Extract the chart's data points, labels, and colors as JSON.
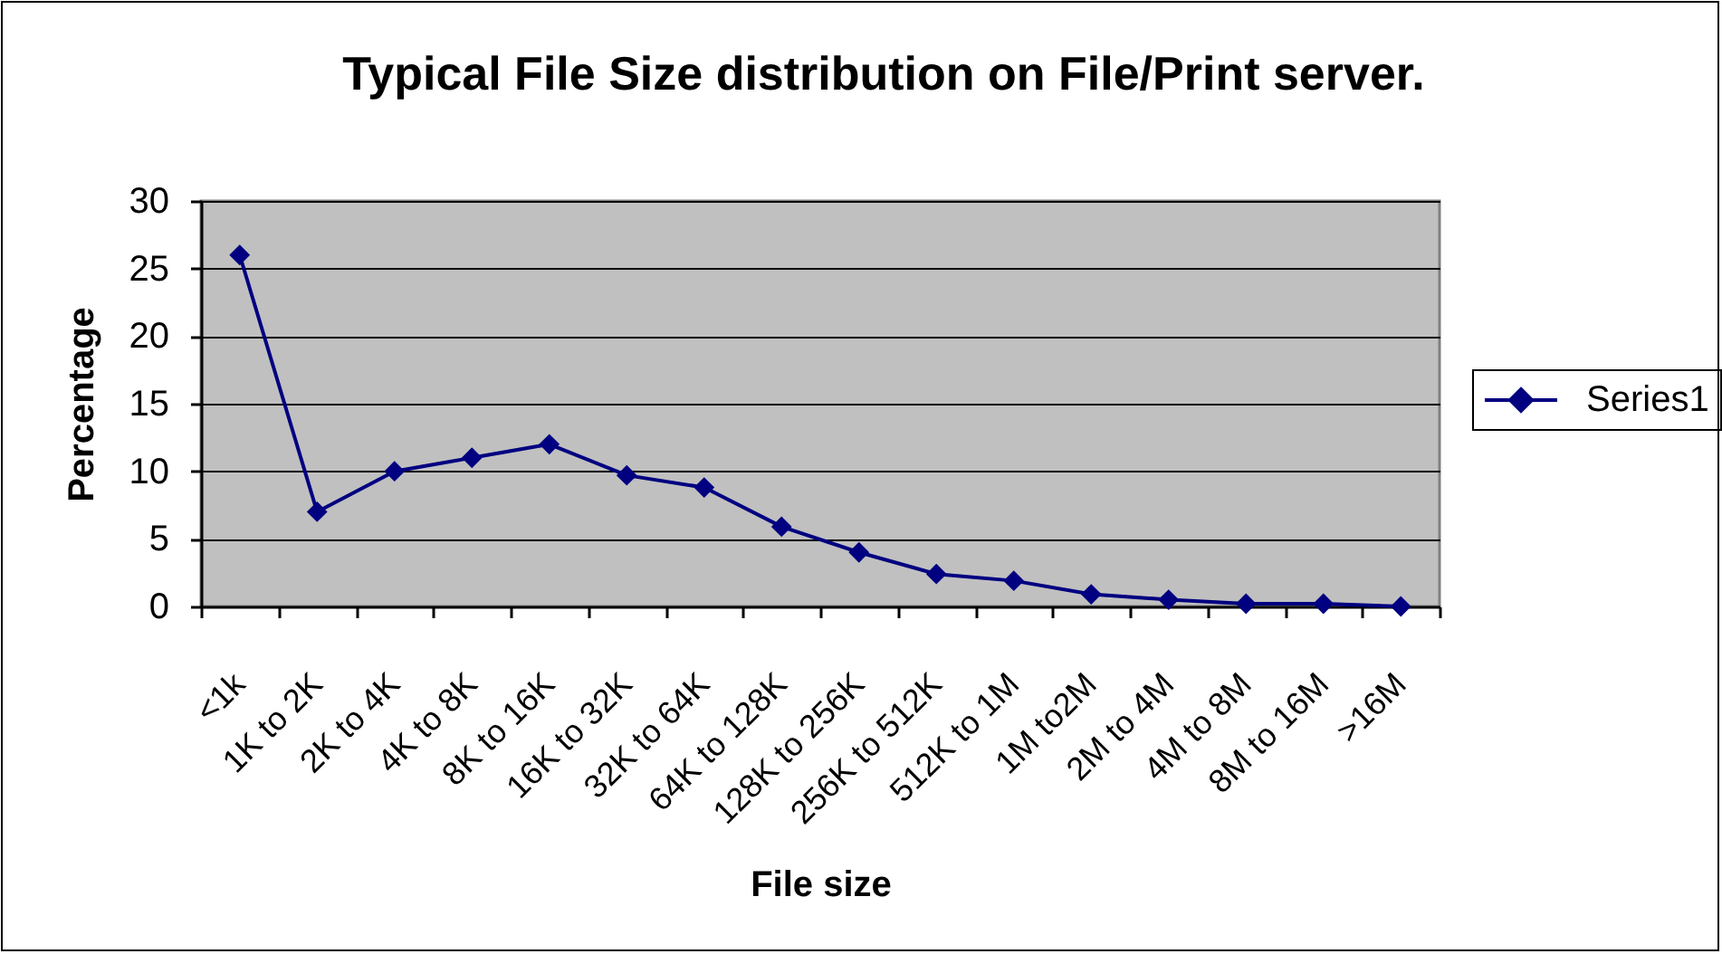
{
  "chart_data": {
    "type": "line",
    "title": "Typical File Size distribution on File/Print server.",
    "xlabel": "File size",
    "ylabel": "Percentage",
    "categories": [
      "<1k",
      "1K to 2K",
      "2K to 4K",
      "4K to 8K",
      "8K to 16K",
      "16K to 32K",
      "32K to 64K",
      "64K to 128K",
      "128K to 256K",
      "256K to 512K",
      "512K to 1M",
      "1M to2M",
      "2M to 4M",
      "4M to 8M",
      "8M to 16M",
      ">16M"
    ],
    "series": [
      {
        "name": "Series1",
        "color": "#000080",
        "values": [
          26,
          7,
          10,
          11,
          12,
          9.7,
          8.8,
          5.9,
          4,
          2.4,
          1.9,
          0.9,
          0.5,
          0.2,
          0.2,
          0
        ]
      }
    ],
    "ylim": [
      0,
      30
    ],
    "yticks": [
      0,
      5,
      10,
      15,
      20,
      25,
      30
    ],
    "grid": "y",
    "legend": "right",
    "marker": "diamond",
    "line_style": "solid"
  }
}
